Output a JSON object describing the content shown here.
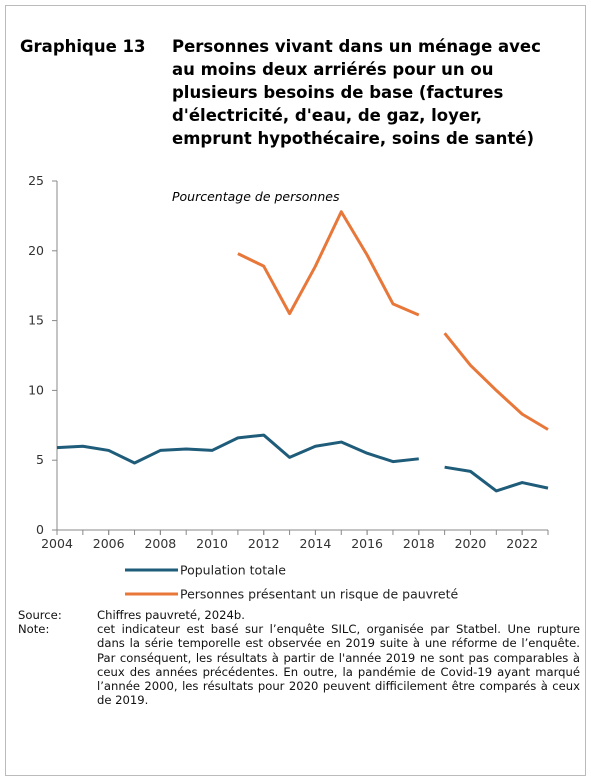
{
  "chart_data": {
    "type": "line",
    "label": "Graphique 13",
    "title": [
      "Personnes vivant dans un ménage avec",
      "au moins deux arriérés pour un ou",
      "plusieurs besoins de base (factures",
      "d'électricité, d'eau, de gaz, loyer,",
      "emprunt hypothécaire, soins de santé)"
    ],
    "subtitle": "Pourcentage de personnes",
    "x": [
      2004,
      2005,
      2006,
      2007,
      2008,
      2009,
      2010,
      2011,
      2012,
      2013,
      2014,
      2015,
      2016,
      2017,
      2018,
      2019,
      2020,
      2021,
      2022,
      2023
    ],
    "break_before": 2019,
    "series": [
      {
        "name": "Population totale",
        "color": "#1f5c7a",
        "values": [
          5.9,
          6.0,
          5.7,
          4.8,
          5.7,
          5.8,
          5.7,
          6.6,
          6.8,
          5.2,
          6.0,
          6.3,
          5.5,
          4.9,
          5.1,
          4.5,
          4.2,
          2.8,
          3.4,
          3.0
        ]
      },
      {
        "name": "Personnes présentant un risque de pauvreté",
        "color": "#e8773a",
        "values": [
          null,
          null,
          null,
          null,
          null,
          null,
          null,
          19.8,
          18.9,
          15.5,
          18.9,
          22.8,
          19.7,
          16.2,
          15.4,
          14.1,
          11.8,
          10.0,
          8.3,
          7.2
        ]
      }
    ],
    "xlim": [
      2004,
      2023
    ],
    "xticks": [
      2004,
      2006,
      2008,
      2010,
      2012,
      2014,
      2016,
      2018,
      2020,
      2022
    ],
    "ylim": [
      0,
      25
    ],
    "yticks": [
      0,
      5,
      10,
      15,
      20,
      25
    ],
    "source_label": "Source:",
    "source": "Chiffres pauvreté, 2024b.",
    "note_label": "Note:",
    "note": "cet indicateur est basé sur l’enquête SILC, organisée par Statbel. Une rupture dans la série temporelle est observée en 2019 suite à une réforme de l’enquête. Par conséquent, les résultats à partir de l'année 2019 ne sont pas comparables à ceux des années précédentes. En outre, la pandémie de Covid-19 ayant marqué l’année 2000, les résultats pour 2020 peuvent difficilement être comparés à ceux de 2019."
  }
}
